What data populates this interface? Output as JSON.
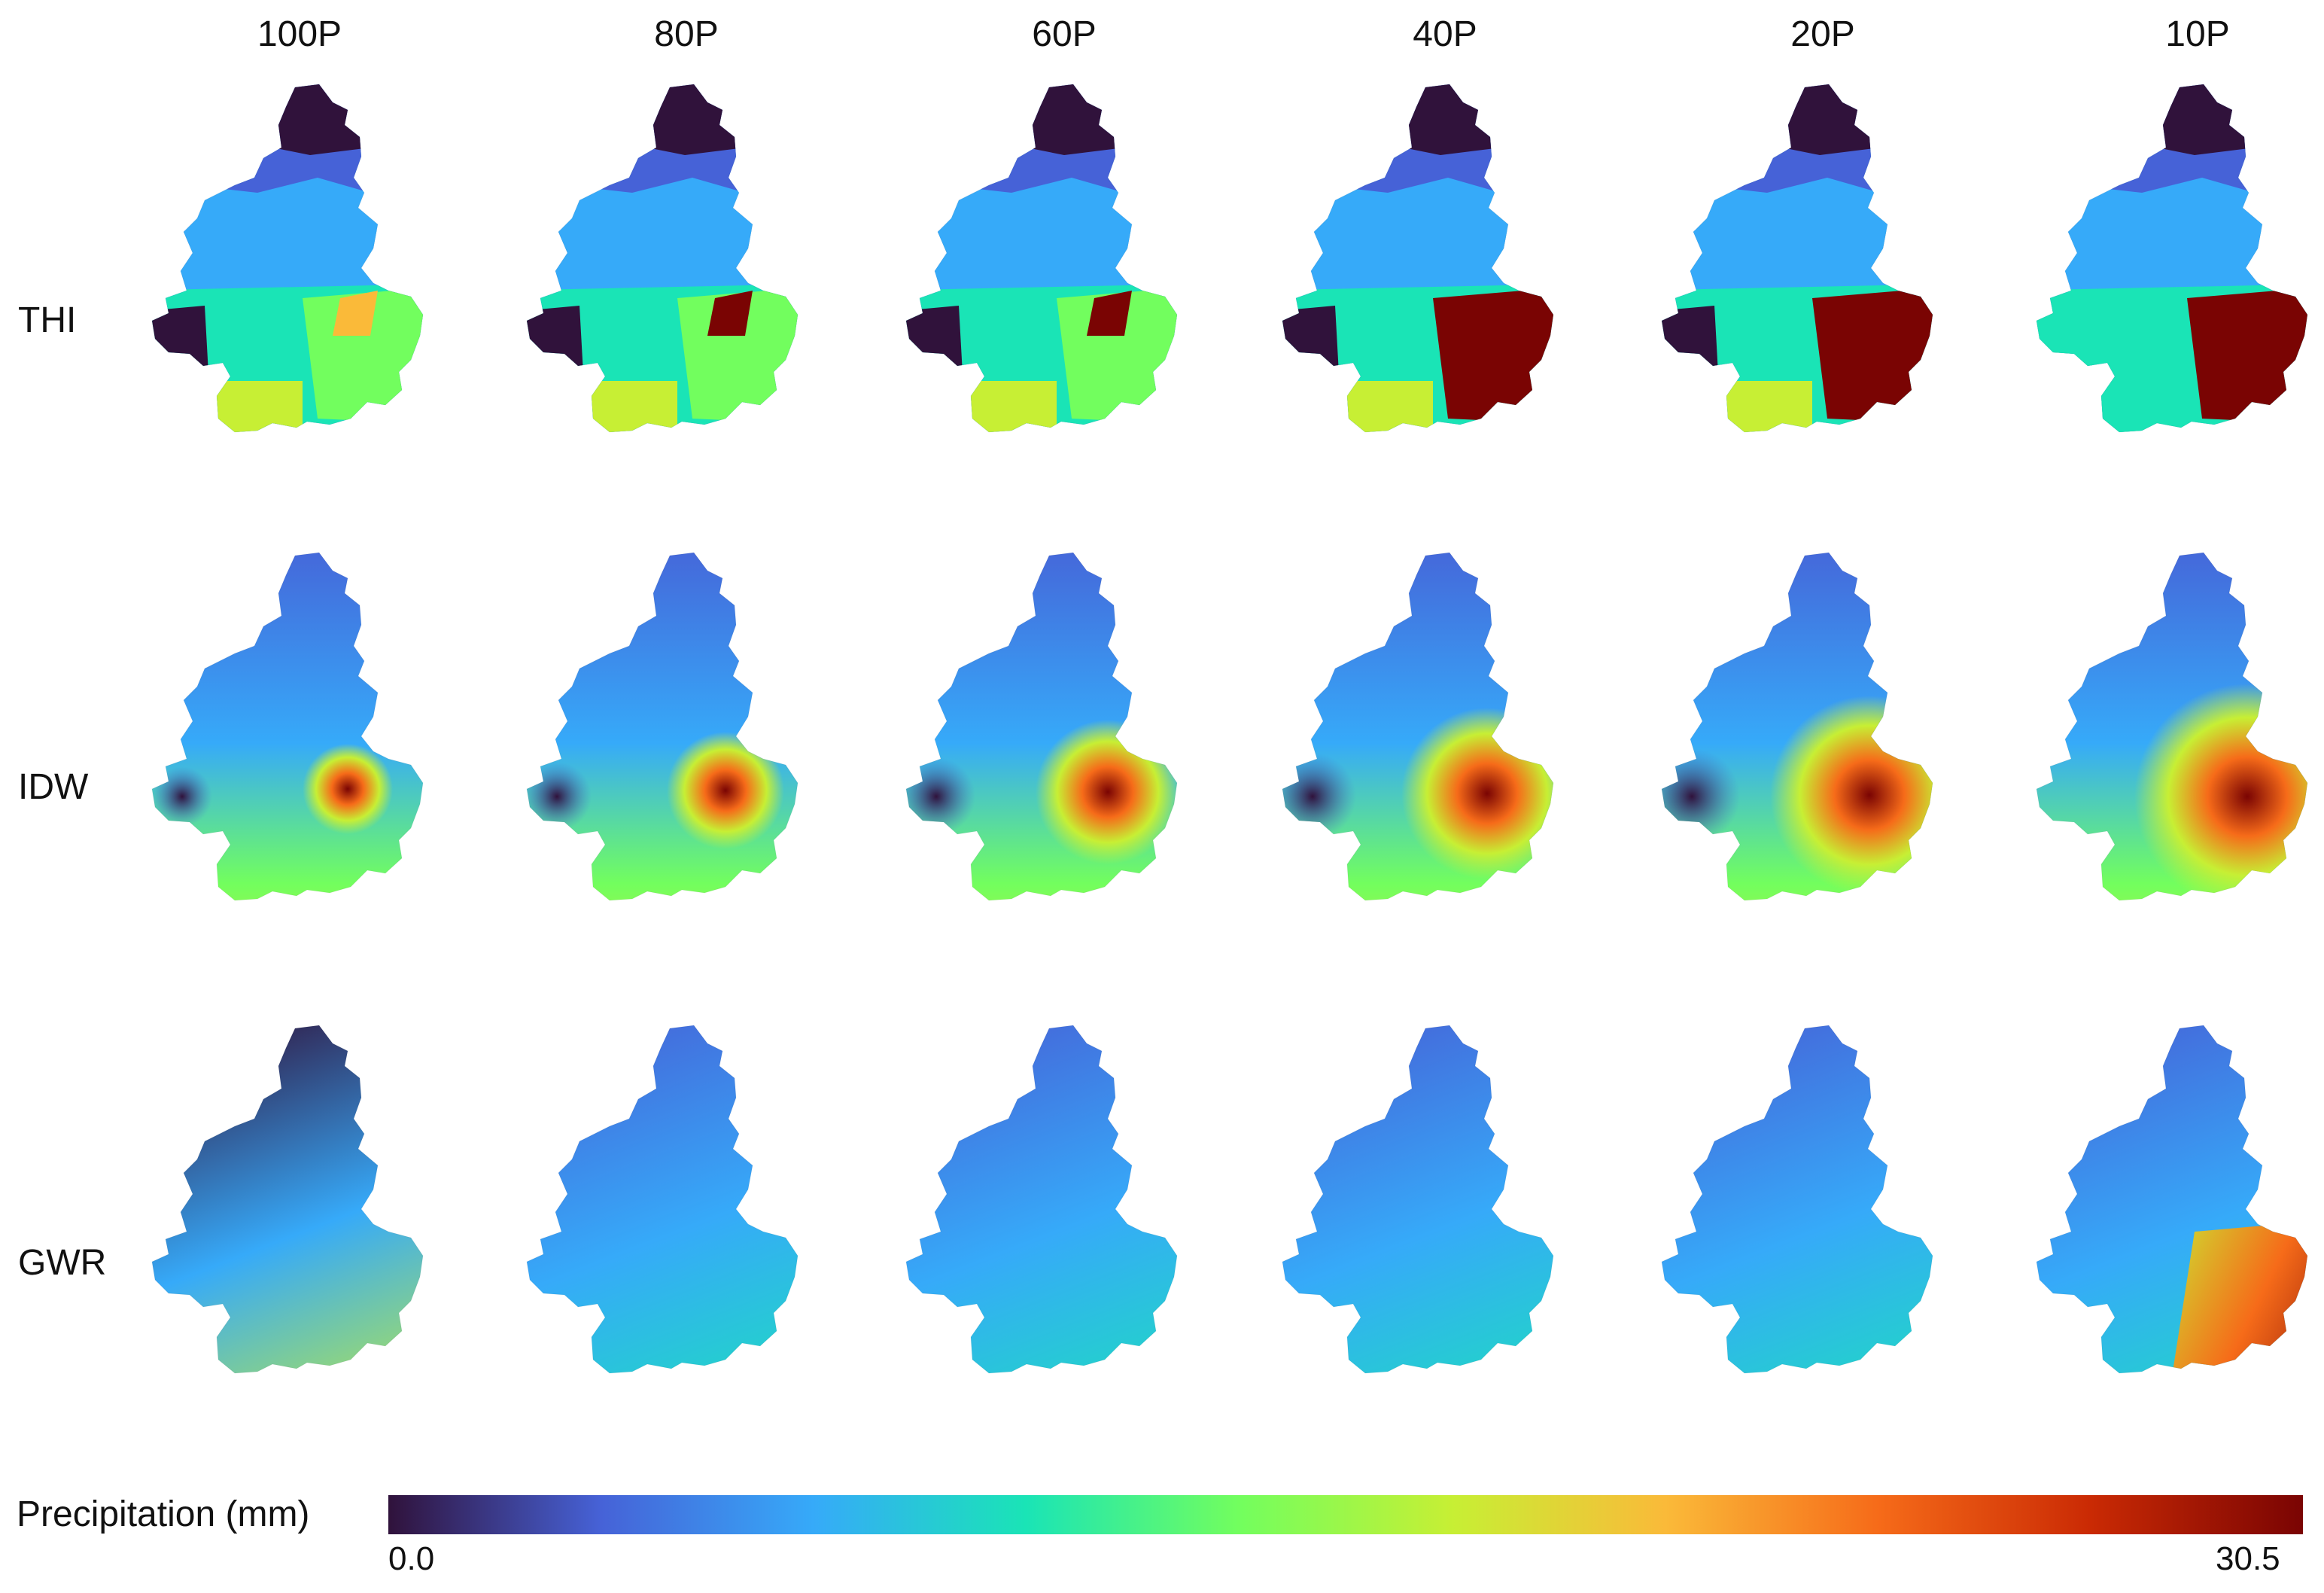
{
  "columns": [
    "100P",
    "80P",
    "60P",
    "40P",
    "20P",
    "10P"
  ],
  "rows": [
    "THI",
    "IDW",
    "GWR"
  ],
  "colorbar": {
    "title": "Precipitation (mm)",
    "min_label": "0.0",
    "max_label": "30.5",
    "range": [
      0.0,
      30.5
    ],
    "colors": [
      "#30123b",
      "#4662d7",
      "#36aaf9",
      "#1ae4b6",
      "#72fe5e",
      "#c7ef34",
      "#faba39",
      "#f66b19",
      "#ca2a04",
      "#7a0403"
    ]
  }
}
